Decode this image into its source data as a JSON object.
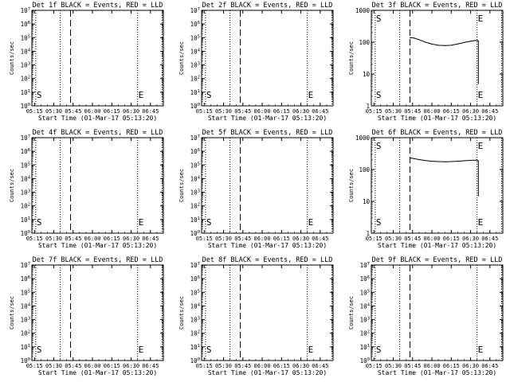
{
  "figure": {
    "background": "#ffffff",
    "ink": "#000000"
  },
  "chart_data": [
    {
      "type": "line",
      "title": "Det 1f BLACK = Events, RED = LLD",
      "xlabel": "Start Time (01-Mar-17 05:13:20)",
      "ylabel": "Counts/sec",
      "yscale": "log",
      "ylim": [
        1,
        10000000
      ],
      "xlim": [
        "05:13",
        "06:55"
      ],
      "x_ticks": [
        "05:15",
        "05:30",
        "05:45",
        "06:00",
        "06:15",
        "06:30",
        "06:45"
      ],
      "y_ticks": [
        "10^0",
        "10^1",
        "10^2",
        "10^3",
        "10^4",
        "10^5",
        "10^6",
        "10^7"
      ],
      "markers": [
        {
          "label": "S",
          "time": "05:16",
          "style": "dotted"
        },
        {
          "label": "",
          "time": "05:35",
          "style": "dotted"
        },
        {
          "label": "",
          "time": "05:43",
          "style": "dashed"
        },
        {
          "label": "E",
          "time": "06:35",
          "style": "dotted"
        },
        {
          "label": "",
          "time": "06:54",
          "style": "dotted"
        }
      ],
      "series": []
    },
    {
      "type": "line",
      "title": "Det 2f BLACK = Events, RED = LLD",
      "xlabel": "Start Time (01-Mar-17 05:13:20)",
      "ylabel": "Counts/sec",
      "yscale": "log",
      "ylim": [
        1,
        10000000
      ],
      "xlim": [
        "05:13",
        "06:55"
      ],
      "x_ticks": [
        "05:15",
        "05:30",
        "05:45",
        "06:00",
        "06:15",
        "06:30",
        "06:45"
      ],
      "y_ticks": [
        "10^0",
        "10^1",
        "10^2",
        "10^3",
        "10^4",
        "10^5",
        "10^6",
        "10^7"
      ],
      "markers": [
        {
          "label": "S",
          "time": "05:16",
          "style": "dotted"
        },
        {
          "label": "",
          "time": "05:35",
          "style": "dotted"
        },
        {
          "label": "",
          "time": "05:43",
          "style": "dashed"
        },
        {
          "label": "E",
          "time": "06:35",
          "style": "dotted"
        },
        {
          "label": "",
          "time": "06:54",
          "style": "dotted"
        }
      ],
      "series": []
    },
    {
      "type": "line",
      "title": "Det 3f BLACK = Events, RED = LLD",
      "xlabel": "Start Time (01-Mar-17 05:13:20)",
      "ylabel": "Counts/sec",
      "yscale": "log",
      "ylim": [
        1,
        1000
      ],
      "xlim": [
        "05:13",
        "06:55"
      ],
      "x_ticks": [
        "05:15",
        "05:30",
        "05:45",
        "06:00",
        "06:15",
        "06:30",
        "06:45"
      ],
      "y_ticks": [
        "1",
        "10",
        "100",
        "1000"
      ],
      "markers": [
        {
          "label": "S",
          "time": "05:16",
          "style": "dotted"
        },
        {
          "label": "",
          "time": "05:35",
          "style": "dotted"
        },
        {
          "label": "",
          "time": "05:43",
          "style": "dashed"
        },
        {
          "label": "E",
          "time": "06:35",
          "style": "dotted"
        },
        {
          "label": "",
          "time": "06:54",
          "style": "dotted"
        }
      ],
      "series": [
        {
          "points": [
            [
              "05:43",
              140
            ],
            [
              "05:46",
              135
            ],
            [
              "05:50",
              120
            ],
            [
              "05:55",
              100
            ],
            [
              "06:00",
              87
            ],
            [
              "06:05",
              80
            ],
            [
              "06:10",
              78
            ],
            [
              "06:15",
              80
            ],
            [
              "06:20",
              88
            ],
            [
              "06:25",
              98
            ],
            [
              "06:30",
              108
            ],
            [
              "06:33",
              112
            ],
            [
              "06:35",
              115
            ],
            [
              "06:36",
              108
            ],
            [
              "06:36",
              5
            ]
          ]
        }
      ]
    },
    {
      "type": "line",
      "title": "Det 4f BLACK = Events, RED = LLD",
      "xlabel": "Start Time (01-Mar-17 05:13:20)",
      "ylabel": "Counts/sec",
      "yscale": "log",
      "ylim": [
        1,
        10000000
      ],
      "xlim": [
        "05:13",
        "06:55"
      ],
      "x_ticks": [
        "05:15",
        "05:30",
        "05:45",
        "06:00",
        "06:15",
        "06:30",
        "06:45"
      ],
      "y_ticks": [
        "10^0",
        "10^1",
        "10^2",
        "10^3",
        "10^4",
        "10^5",
        "10^6",
        "10^7"
      ],
      "markers": [
        {
          "label": "S",
          "time": "05:16",
          "style": "dotted"
        },
        {
          "label": "",
          "time": "05:35",
          "style": "dotted"
        },
        {
          "label": "",
          "time": "05:43",
          "style": "dashed"
        },
        {
          "label": "E",
          "time": "06:35",
          "style": "dotted"
        },
        {
          "label": "",
          "time": "06:54",
          "style": "dotted"
        }
      ],
      "series": []
    },
    {
      "type": "line",
      "title": "Det 5f BLACK = Events, RED = LLD",
      "xlabel": "Start Time (01-Mar-17 05:13:20)",
      "ylabel": "Counts/sec",
      "yscale": "log",
      "ylim": [
        1,
        10000000
      ],
      "xlim": [
        "05:13",
        "06:55"
      ],
      "x_ticks": [
        "05:15",
        "05:30",
        "05:45",
        "06:00",
        "06:15",
        "06:30",
        "06:45"
      ],
      "y_ticks": [
        "10^0",
        "10^1",
        "10^2",
        "10^3",
        "10^4",
        "10^5",
        "10^6",
        "10^7"
      ],
      "markers": [
        {
          "label": "S",
          "time": "05:16",
          "style": "dotted"
        },
        {
          "label": "",
          "time": "05:35",
          "style": "dotted"
        },
        {
          "label": "",
          "time": "05:43",
          "style": "dashed"
        },
        {
          "label": "E",
          "time": "06:35",
          "style": "dotted"
        },
        {
          "label": "",
          "time": "06:54",
          "style": "dotted"
        }
      ],
      "series": []
    },
    {
      "type": "line",
      "title": "Det 6f BLACK = Events, RED = LLD",
      "xlabel": "Start Time (01-Mar-17 05:13:20)",
      "ylabel": "Counts/sec",
      "yscale": "log",
      "ylim": [
        1,
        1000
      ],
      "xlim": [
        "05:13",
        "06:55"
      ],
      "x_ticks": [
        "05:15",
        "05:30",
        "05:45",
        "06:00",
        "06:15",
        "06:30",
        "06:45"
      ],
      "y_ticks": [
        "1",
        "10",
        "100",
        "1000"
      ],
      "markers": [
        {
          "label": "S",
          "time": "05:16",
          "style": "dotted"
        },
        {
          "label": "",
          "time": "05:35",
          "style": "dotted"
        },
        {
          "label": "",
          "time": "05:43",
          "style": "dashed"
        },
        {
          "label": "E",
          "time": "06:35",
          "style": "dotted"
        },
        {
          "label": "",
          "time": "06:54",
          "style": "dotted"
        }
      ],
      "series": [
        {
          "points": [
            [
              "05:43",
              230
            ],
            [
              "05:46",
              220
            ],
            [
              "05:50",
              205
            ],
            [
              "05:55",
              190
            ],
            [
              "06:00",
              182
            ],
            [
              "06:05",
              178
            ],
            [
              "06:10",
              176
            ],
            [
              "06:15",
              178
            ],
            [
              "06:20",
              182
            ],
            [
              "06:25",
              188
            ],
            [
              "06:30",
              194
            ],
            [
              "06:35",
              198
            ],
            [
              "06:36",
              185
            ],
            [
              "06:36",
              15
            ]
          ]
        }
      ]
    },
    {
      "type": "line",
      "title": "Det 7f BLACK = Events, RED = LLD",
      "xlabel": "Start Time (01-Mar-17 05:13:20)",
      "ylabel": "Counts/sec",
      "yscale": "log",
      "ylim": [
        1,
        10000000
      ],
      "xlim": [
        "05:13",
        "06:55"
      ],
      "x_ticks": [
        "05:15",
        "05:30",
        "05:45",
        "06:00",
        "06:15",
        "06:30",
        "06:45"
      ],
      "y_ticks": [
        "10^0",
        "10^1",
        "10^2",
        "10^3",
        "10^4",
        "10^5",
        "10^6",
        "10^7"
      ],
      "markers": [
        {
          "label": "S",
          "time": "05:16",
          "style": "dotted"
        },
        {
          "label": "",
          "time": "05:35",
          "style": "dotted"
        },
        {
          "label": "",
          "time": "05:43",
          "style": "dashed"
        },
        {
          "label": "E",
          "time": "06:35",
          "style": "dotted"
        },
        {
          "label": "",
          "time": "06:54",
          "style": "dotted"
        }
      ],
      "series": []
    },
    {
      "type": "line",
      "title": "Det 8f BLACK = Events, RED = LLD",
      "xlabel": "Start Time (01-Mar-17 05:13:20)",
      "ylabel": "Counts/sec",
      "yscale": "log",
      "ylim": [
        1,
        10000000
      ],
      "xlim": [
        "05:13",
        "06:55"
      ],
      "x_ticks": [
        "05:15",
        "05:30",
        "05:45",
        "06:00",
        "06:15",
        "06:30",
        "06:45"
      ],
      "y_ticks": [
        "10^0",
        "10^1",
        "10^2",
        "10^3",
        "10^4",
        "10^5",
        "10^6",
        "10^7"
      ],
      "markers": [
        {
          "label": "S",
          "time": "05:16",
          "style": "dotted"
        },
        {
          "label": "",
          "time": "05:35",
          "style": "dotted"
        },
        {
          "label": "",
          "time": "05:43",
          "style": "dashed"
        },
        {
          "label": "E",
          "time": "06:35",
          "style": "dotted"
        },
        {
          "label": "",
          "time": "06:54",
          "style": "dotted"
        }
      ],
      "series": []
    },
    {
      "type": "line",
      "title": "Det 9f BLACK = Events, RED = LLD",
      "xlabel": "Start Time (01-Mar-17 05:13:20)",
      "ylabel": "Counts/sec",
      "yscale": "log",
      "ylim": [
        1,
        10000000
      ],
      "xlim": [
        "05:13",
        "06:55"
      ],
      "x_ticks": [
        "05:15",
        "05:30",
        "05:45",
        "06:00",
        "06:15",
        "06:30",
        "06:45"
      ],
      "y_ticks": [
        "10^0",
        "10^1",
        "10^2",
        "10^3",
        "10^4",
        "10^5",
        "10^6",
        "10^7"
      ],
      "markers": [
        {
          "label": "S",
          "time": "05:16",
          "style": "dotted"
        },
        {
          "label": "",
          "time": "05:35",
          "style": "dotted"
        },
        {
          "label": "",
          "time": "05:43",
          "style": "dashed"
        },
        {
          "label": "E",
          "time": "06:35",
          "style": "dotted"
        },
        {
          "label": "",
          "time": "06:54",
          "style": "dotted"
        }
      ],
      "series": []
    }
  ]
}
